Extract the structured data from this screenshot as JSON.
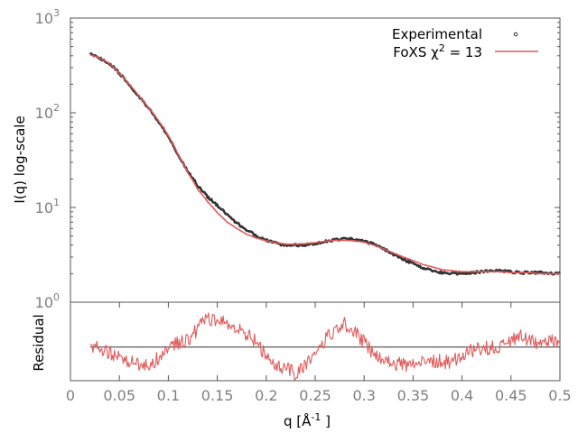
{
  "chart_data": [
    {
      "type": "line",
      "name": "saxs-profile",
      "ylabel": "I(q) log-scale",
      "y_scale": "log",
      "xlim": [
        0,
        0.5
      ],
      "ylim": [
        1,
        1000
      ],
      "yticks": [
        {
          "value": 1,
          "base": "10",
          "exp": "0"
        },
        {
          "value": 10,
          "base": "10",
          "exp": "1"
        },
        {
          "value": 100,
          "base": "10",
          "exp": "2"
        },
        {
          "value": 1000,
          "base": "10",
          "exp": "3"
        }
      ],
      "legend": {
        "position": "top-right",
        "entries": [
          {
            "label": "Experimental",
            "marker": "point",
            "color": "#333333"
          },
          {
            "label": "FoXS χ 2 = 13",
            "label_main": "FoXS χ",
            "label_sup": "2",
            "label_tail": " = 13",
            "marker": "line",
            "color": "#e05a5a"
          }
        ]
      },
      "series": [
        {
          "name": "Experimental",
          "color": "#333333",
          "x": [
            0.02,
            0.03,
            0.04,
            0.05,
            0.06,
            0.07,
            0.08,
            0.09,
            0.1,
            0.11,
            0.12,
            0.13,
            0.14,
            0.15,
            0.16,
            0.17,
            0.18,
            0.19,
            0.2,
            0.21,
            0.22,
            0.23,
            0.24,
            0.25,
            0.26,
            0.27,
            0.28,
            0.29,
            0.3,
            0.31,
            0.32,
            0.33,
            0.34,
            0.35,
            0.36,
            0.37,
            0.38,
            0.39,
            0.4,
            0.41,
            0.42,
            0.43,
            0.44,
            0.45,
            0.46,
            0.47,
            0.48,
            0.49,
            0.5
          ],
          "y": [
            420,
            375,
            330,
            260,
            195,
            148,
            110,
            80,
            56,
            35,
            24,
            17,
            13,
            10.5,
            8.3,
            6.8,
            5.8,
            5.0,
            4.55,
            4.2,
            4.0,
            4.0,
            4.05,
            4.15,
            4.35,
            4.55,
            4.65,
            4.6,
            4.4,
            4.1,
            3.65,
            3.2,
            2.85,
            2.55,
            2.3,
            2.15,
            2.05,
            2.0,
            2.0,
            2.05,
            2.1,
            2.15,
            2.15,
            2.1,
            2.05,
            2.05,
            2.05,
            2.0,
            2.0
          ]
        },
        {
          "name": "FoXS",
          "color": "#e05a5a",
          "x": [
            0.02,
            0.03,
            0.04,
            0.05,
            0.06,
            0.07,
            0.08,
            0.09,
            0.1,
            0.11,
            0.12,
            0.13,
            0.14,
            0.15,
            0.16,
            0.17,
            0.18,
            0.19,
            0.2,
            0.21,
            0.22,
            0.23,
            0.24,
            0.25,
            0.26,
            0.27,
            0.28,
            0.29,
            0.3,
            0.31,
            0.32,
            0.33,
            0.34,
            0.35,
            0.36,
            0.37,
            0.38,
            0.39,
            0.4,
            0.41,
            0.42,
            0.43,
            0.44,
            0.45,
            0.46,
            0.47,
            0.48,
            0.49,
            0.5
          ],
          "y": [
            410,
            380,
            330,
            260,
            200,
            150,
            112,
            82,
            57,
            36,
            23,
            15.5,
            11.5,
            8.8,
            7.0,
            6.0,
            5.2,
            4.75,
            4.45,
            4.25,
            4.1,
            4.1,
            4.15,
            4.25,
            4.4,
            4.5,
            4.5,
            4.45,
            4.3,
            4.0,
            3.65,
            3.3,
            3.0,
            2.75,
            2.5,
            2.35,
            2.2,
            2.15,
            2.1,
            2.1,
            2.1,
            2.1,
            2.1,
            2.05,
            2.05,
            2.05,
            2.0,
            2.0,
            2.0
          ]
        }
      ]
    },
    {
      "type": "line",
      "name": "residual",
      "xlabel": "q [Å -1 ]",
      "xlabel_main": "q [Å",
      "xlabel_sup": "-1",
      "xlabel_tail": " ]",
      "ylabel": "Residual",
      "xlim": [
        0,
        0.5
      ],
      "ylim": [
        -3,
        4
      ],
      "xticks": [
        "0",
        "0.05",
        "0.1",
        "0.15",
        "0.2",
        "0.25",
        "0.3",
        "0.35",
        "0.4",
        "0.45",
        "0.5"
      ],
      "zero_line": 0,
      "series": [
        {
          "name": "Residual",
          "color": "#e05a5a",
          "x": [
            0.02,
            0.03,
            0.04,
            0.05,
            0.06,
            0.07,
            0.08,
            0.09,
            0.1,
            0.11,
            0.12,
            0.13,
            0.14,
            0.15,
            0.16,
            0.17,
            0.18,
            0.19,
            0.2,
            0.21,
            0.22,
            0.23,
            0.24,
            0.25,
            0.26,
            0.27,
            0.28,
            0.29,
            0.3,
            0.31,
            0.32,
            0.33,
            0.34,
            0.35,
            0.36,
            0.37,
            0.38,
            0.39,
            0.4,
            0.41,
            0.42,
            0.43,
            0.44,
            0.45,
            0.46,
            0.47,
            0.48,
            0.49,
            0.5
          ],
          "y": [
            0.2,
            0.0,
            -0.5,
            -0.9,
            -1.3,
            -1.6,
            -1.7,
            -0.9,
            0.2,
            0.4,
            0.6,
            1.6,
            2.7,
            2.3,
            2.1,
            1.6,
            1.1,
            0.6,
            -1.0,
            -1.6,
            -1.9,
            -2.4,
            -1.6,
            -0.5,
            0.7,
            1.3,
            2.0,
            1.4,
            0.4,
            -0.6,
            -1.3,
            -1.4,
            -1.6,
            -1.5,
            -1.3,
            -1.2,
            -1.3,
            -1.3,
            -0.7,
            -0.3,
            -0.2,
            0.0,
            0.1,
            0.5,
            1.0,
            0.6,
            0.4,
            0.5,
            0.5
          ]
        }
      ]
    }
  ]
}
